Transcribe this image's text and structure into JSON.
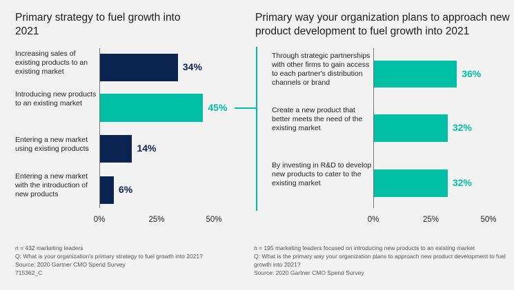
{
  "colors": {
    "navy": "#0b2350",
    "teal": "#00bfa5"
  },
  "chart_data": [
    {
      "type": "bar",
      "orientation": "horizontal",
      "title": "Primary strategy to fuel growth into 2021",
      "categories": [
        "Increasing sales of existing products to an existing market",
        "Introducing new products to an existing market",
        "Entering a new market using existing products",
        "Entering a new market with the introduction of new products"
      ],
      "values": [
        34,
        45,
        14,
        6
      ],
      "labels": [
        "34%",
        "45%",
        "14%",
        "6%"
      ],
      "highlight": [
        false,
        true,
        false,
        false
      ],
      "xlim": [
        0,
        50
      ],
      "ticks": [
        "0%",
        "25%",
        "50%"
      ]
    },
    {
      "type": "bar",
      "orientation": "horizontal",
      "title": "Primary way your organization plans to approach new product development to fuel growth into 2021",
      "categories": [
        "Through strategic partnerships with other firms to gain access to each partner's distribution channels or brand",
        "Create a new product that better meets the need of the existing market",
        "By investing in R&D to develop new products to cater to the existing market"
      ],
      "values": [
        36,
        32,
        32
      ],
      "labels": [
        "36%",
        "32%",
        "32%"
      ],
      "xlim": [
        0,
        50
      ],
      "ticks": [
        "0%",
        "25%",
        "50%"
      ]
    }
  ],
  "notes_left": [
    "n = 432 marketing leaders",
    "Q: What is your organization's primary strategy to fuel growth into 2021?",
    "Source: 2020 Gartner CMO Spend Survey",
    "715362_C"
  ],
  "notes_right": [
    "n = 195 marketing leaders focused on introducing new products to an existing market",
    "Q: What is the primary way your organization plans to approach new product development to fuel growth into 2021?",
    "Source: 2020 Gartner CMO Spend Survey"
  ]
}
